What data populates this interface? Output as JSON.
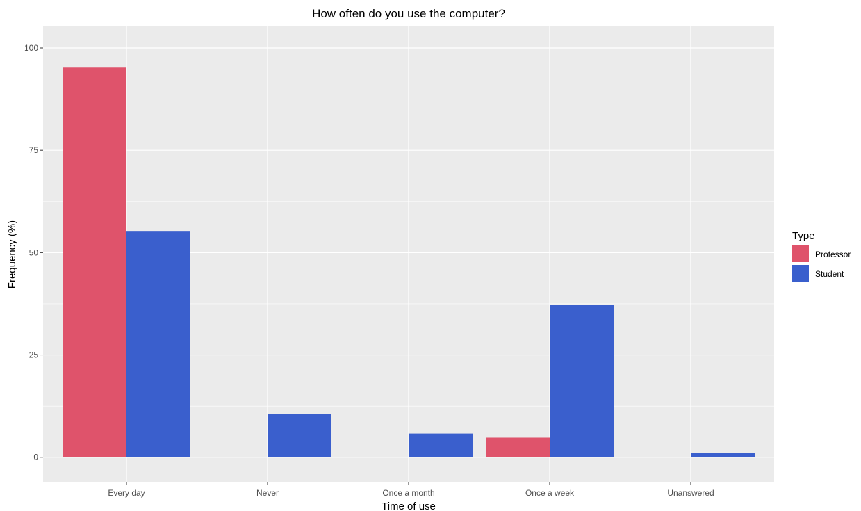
{
  "chart_data": {
    "type": "bar",
    "title": "How often do you use the computer?",
    "xlabel": "Time of use",
    "ylabel": "Frequency (%)",
    "categories": [
      "Every day",
      "Never",
      "Once a month",
      "Once a week",
      "Unanswered"
    ],
    "series": [
      {
        "name": "Professor",
        "color": "#df536b",
        "values": [
          95.2,
          0,
          0,
          4.8,
          0
        ]
      },
      {
        "name": "Student",
        "color": "#3a5fcd",
        "values": [
          55.3,
          10.5,
          5.8,
          37.2,
          1.1
        ]
      }
    ],
    "yticks": [
      0,
      25,
      50,
      75,
      100
    ],
    "ytick_labels": [
      "0",
      "25",
      "50",
      "75",
      "100"
    ],
    "ylim": [
      -4.8,
      100
    ],
    "grid": true,
    "panel_background": "#ebebeb",
    "legend": {
      "title": "Type",
      "placement": "right"
    }
  }
}
